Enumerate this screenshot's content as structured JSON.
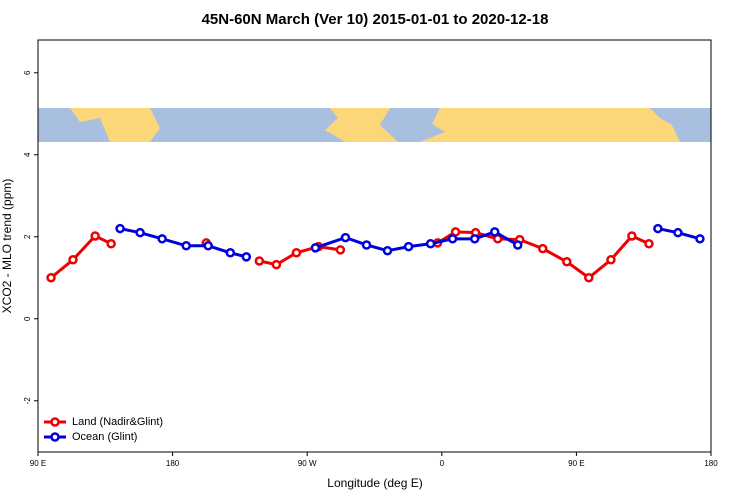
{
  "chart_data": {
    "type": "line",
    "title": "45N-60N March (Ver 10)   2015-01-01 to 2020-12-18",
    "x_label": "Longitude (deg E)",
    "y_label": "XCO2 - MLO trend (ppm)",
    "xlim": [
      90,
      540
    ],
    "ylim": [
      -3.25,
      6.8
    ],
    "xticks": [
      {
        "value": 90,
        "label": "90 E"
      },
      {
        "value": 180,
        "label": "180"
      },
      {
        "value": 270,
        "label": "90 W"
      },
      {
        "value": 360,
        "label": "0"
      },
      {
        "value": 450,
        "label": "90 E"
      },
      {
        "value": 540,
        "label": "180"
      }
    ],
    "yticks": [
      -2,
      0,
      2,
      4,
      6
    ],
    "legend": "bottom-left",
    "series": [
      {
        "name": "Land (Nadir&Glint)",
        "color": "#ee0000",
        "x": [
          98.7,
          113.4,
          128.2,
          138.9,
          null,
          202.5,
          null,
          238,
          249.4,
          262.8,
          277.5,
          292.2,
          null,
          357.2,
          369.2,
          382.6,
          397.4,
          412.1,
          427.5,
          443.6,
          458.3,
          473.1,
          487.1,
          498.5
        ],
        "values": [
          1.0,
          1.44,
          2.02,
          1.83,
          null,
          1.85,
          null,
          1.41,
          1.32,
          1.61,
          1.76,
          1.68,
          null,
          1.85,
          2.12,
          2.1,
          1.95,
          1.93,
          1.71,
          1.39,
          1.0,
          1.44,
          2.02,
          1.83
        ]
      },
      {
        "name": "Ocean (Glint)",
        "color": "#0000dd",
        "x": [
          144.9,
          158.3,
          173,
          189.1,
          203.8,
          218.6,
          229.3,
          null,
          275.5,
          295.6,
          309.7,
          323.7,
          337.8,
          352.5,
          367.2,
          382,
          395.4,
          410.8,
          null,
          504.5,
          517.9,
          532.6
        ],
        "values": [
          2.2,
          2.1,
          1.95,
          1.78,
          1.78,
          1.61,
          1.51,
          null,
          1.73,
          1.98,
          1.8,
          1.66,
          1.76,
          1.83,
          1.95,
          1.95,
          2.12,
          1.8,
          null,
          2.2,
          2.1,
          1.95
        ]
      }
    ]
  }
}
